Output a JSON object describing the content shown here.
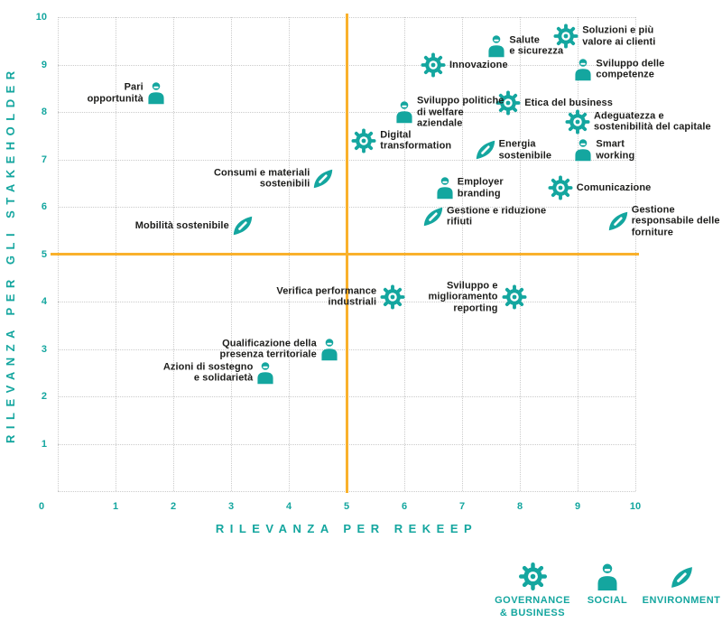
{
  "colors": {
    "teal": "#14a69f",
    "orange": "#f9b12c",
    "grid": "#cbcbcb",
    "label_text": "#1d1d1b"
  },
  "chart_data": {
    "type": "scatter",
    "title": "",
    "xlabel": "RILEVANZA PER REKEEP",
    "ylabel": "RILEVANZA PER GLI STAKEHOLDER",
    "xlim": [
      0,
      10
    ],
    "ylim": [
      0,
      10
    ],
    "x_ticks": [
      0,
      1,
      2,
      3,
      4,
      5,
      6,
      7,
      8,
      9,
      10
    ],
    "y_ticks": [
      1,
      2,
      3,
      4,
      5,
      6,
      7,
      8,
      9,
      10
    ],
    "grid": "dotted",
    "quadrant_lines": {
      "x": 5,
      "y": 5
    },
    "legend_position": "bottom-right",
    "categories": [
      {
        "id": "governance",
        "icon": "gear-icon",
        "label_lines": [
          "GOVERNANCE",
          "& BUSINESS"
        ]
      },
      {
        "id": "social",
        "icon": "person-icon",
        "label_lines": [
          "SOCIAL"
        ]
      },
      {
        "id": "environment",
        "icon": "leaf-icon",
        "label_lines": [
          "ENVIRONMENT"
        ]
      }
    ],
    "points": [
      {
        "label_lines": [
          "Soluzioni e più",
          "valore ai clienti"
        ],
        "x": 8.8,
        "y": 9.6,
        "category": "governance",
        "label_side": "right"
      },
      {
        "label_lines": [
          "Salute",
          "e sicurezza"
        ],
        "x": 7.6,
        "y": 9.4,
        "category": "social",
        "label_side": "right"
      },
      {
        "label_lines": [
          "Innovazione"
        ],
        "x": 6.5,
        "y": 9.0,
        "category": "governance",
        "label_side": "right"
      },
      {
        "label_lines": [
          "Sviluppo delle",
          "competenze"
        ],
        "x": 9.1,
        "y": 8.9,
        "category": "social",
        "label_side": "right"
      },
      {
        "label_lines": [
          "Pari",
          "opportunità"
        ],
        "x": 1.7,
        "y": 8.4,
        "category": "social",
        "label_side": "left"
      },
      {
        "label_lines": [
          "Etica del business"
        ],
        "x": 7.8,
        "y": 8.2,
        "category": "governance",
        "label_side": "right"
      },
      {
        "label_lines": [
          "Sviluppo politiche",
          "di welfare",
          "aziendale"
        ],
        "x": 6.0,
        "y": 8.0,
        "category": "social",
        "label_side": "right"
      },
      {
        "label_lines": [
          "Adeguatezza e",
          "sostenibilità del capitale"
        ],
        "x": 9.0,
        "y": 7.8,
        "category": "governance",
        "label_side": "right"
      },
      {
        "label_lines": [
          "Digital",
          "transformation"
        ],
        "x": 5.3,
        "y": 7.4,
        "category": "governance",
        "label_side": "right"
      },
      {
        "label_lines": [
          "Energia",
          "sostenibile"
        ],
        "x": 7.4,
        "y": 7.2,
        "category": "environment",
        "label_side": "right"
      },
      {
        "label_lines": [
          "Smart",
          "working"
        ],
        "x": 9.1,
        "y": 7.2,
        "category": "social",
        "label_side": "right"
      },
      {
        "label_lines": [
          "Consumi e materiali",
          "sostenibili"
        ],
        "x": 4.6,
        "y": 6.6,
        "category": "environment",
        "label_side": "left"
      },
      {
        "label_lines": [
          "Employer",
          "branding"
        ],
        "x": 6.7,
        "y": 6.4,
        "category": "social",
        "label_side": "right"
      },
      {
        "label_lines": [
          "Comunicazione"
        ],
        "x": 8.7,
        "y": 6.4,
        "category": "governance",
        "label_side": "right"
      },
      {
        "label_lines": [
          "Gestione e riduzione",
          "rifiuti"
        ],
        "x": 6.5,
        "y": 5.8,
        "category": "environment",
        "label_side": "right"
      },
      {
        "label_lines": [
          "Gestione",
          "responsabile delle",
          "forniture"
        ],
        "x": 9.7,
        "y": 5.7,
        "category": "environment",
        "label_side": "right"
      },
      {
        "label_lines": [
          "Mobilità sostenibile"
        ],
        "x": 3.2,
        "y": 5.6,
        "category": "environment",
        "label_side": "left"
      },
      {
        "label_lines": [
          "Verifica performance",
          "industriali"
        ],
        "x": 5.8,
        "y": 4.1,
        "category": "governance",
        "label_side": "left"
      },
      {
        "label_lines": [
          "Sviluppo e",
          "miglioramento",
          "reporting"
        ],
        "x": 7.9,
        "y": 4.1,
        "category": "governance",
        "label_side": "left"
      },
      {
        "label_lines": [
          "Qualificazione della",
          "presenza territoriale"
        ],
        "x": 4.7,
        "y": 3.0,
        "category": "social",
        "label_side": "left"
      },
      {
        "label_lines": [
          "Azioni di sostegno",
          "e solidarietà"
        ],
        "x": 3.6,
        "y": 2.5,
        "category": "social",
        "label_side": "left"
      }
    ]
  }
}
